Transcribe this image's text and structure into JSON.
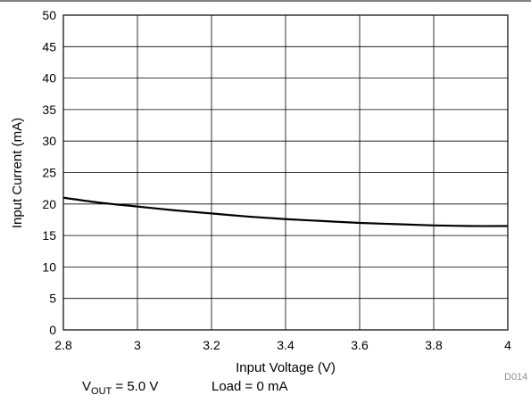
{
  "chart_data": {
    "type": "line",
    "title": "",
    "xlabel": "Input Voltage (V)",
    "ylabel": "Input Current (mA)",
    "xlim": [
      2.8,
      4
    ],
    "ylim": [
      0,
      50
    ],
    "x_ticks": [
      2.8,
      3,
      3.2,
      3.4,
      3.6,
      3.8,
      4
    ],
    "x_tick_labels": [
      "2.8",
      "3",
      "3.2",
      "3.4",
      "3.6",
      "3.8",
      "4"
    ],
    "y_ticks": [
      0,
      5,
      10,
      15,
      20,
      25,
      30,
      35,
      40,
      45,
      50
    ],
    "y_tick_labels": [
      "0",
      "5",
      "10",
      "15",
      "20",
      "25",
      "30",
      "35",
      "40",
      "45",
      "50"
    ],
    "grid": true,
    "series": [
      {
        "x": [
          2.8,
          2.9,
          3.0,
          3.1,
          3.2,
          3.3,
          3.4,
          3.5,
          3.6,
          3.7,
          3.8,
          3.9,
          4.0
        ],
        "y": [
          21.0,
          20.2,
          19.6,
          19.0,
          18.5,
          18.0,
          17.6,
          17.3,
          17.0,
          16.8,
          16.6,
          16.5,
          16.5
        ],
        "color": "#000000"
      }
    ],
    "figure_code": "D014",
    "conditions": {
      "vout_main": "V",
      "vout_sub": "OUT",
      "vout_rest": " = 5.0 V",
      "load": "Load = 0 mA"
    }
  }
}
